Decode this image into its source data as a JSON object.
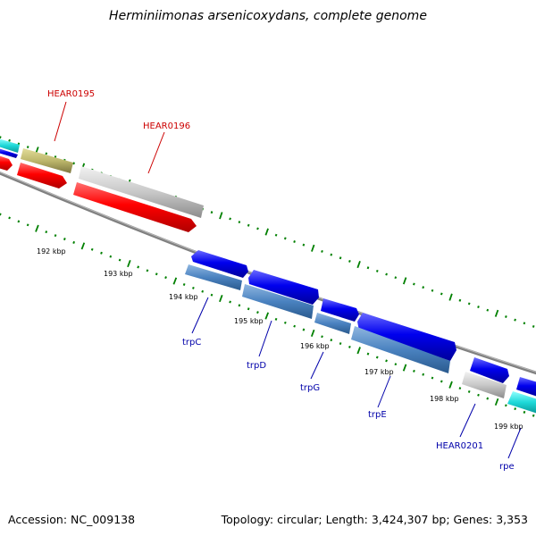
{
  "title": "Herminiimonas arsenicoxydans, complete genome",
  "footer": {
    "accession": "Accession: NC_009138",
    "summary": "Topology: circular; Length: 3,424,307 bp; Genes: 3,353"
  },
  "colors": {
    "red_gene": "#ff0000",
    "blue_gene": "#0000ee",
    "steel_gene": "#4a82c0",
    "cyan_gene": "#1ed8d8",
    "gray_gene": "#c8c8c8",
    "olive_gene": "#bdb76b",
    "tick_green": "#008000",
    "backbone": "#808080",
    "label_red": "#cc0000",
    "label_blue": "#0000aa"
  },
  "scale_labels": [
    "192 kbp",
    "193 kbp",
    "194 kbp",
    "195 kbp",
    "196 kbp",
    "197 kbp",
    "198 kbp",
    "199 kbp"
  ],
  "gene_labels": [
    {
      "text": "HEAR0195",
      "strand": "reverse"
    },
    {
      "text": "HEAR0196",
      "strand": "reverse"
    },
    {
      "text": "trpC",
      "strand": "forward"
    },
    {
      "text": "trpD",
      "strand": "forward"
    },
    {
      "text": "trpG",
      "strand": "forward"
    },
    {
      "text": "trpE",
      "strand": "forward"
    },
    {
      "text": "HEAR0201",
      "strand": "forward"
    },
    {
      "text": "rpe",
      "strand": "forward"
    }
  ]
}
